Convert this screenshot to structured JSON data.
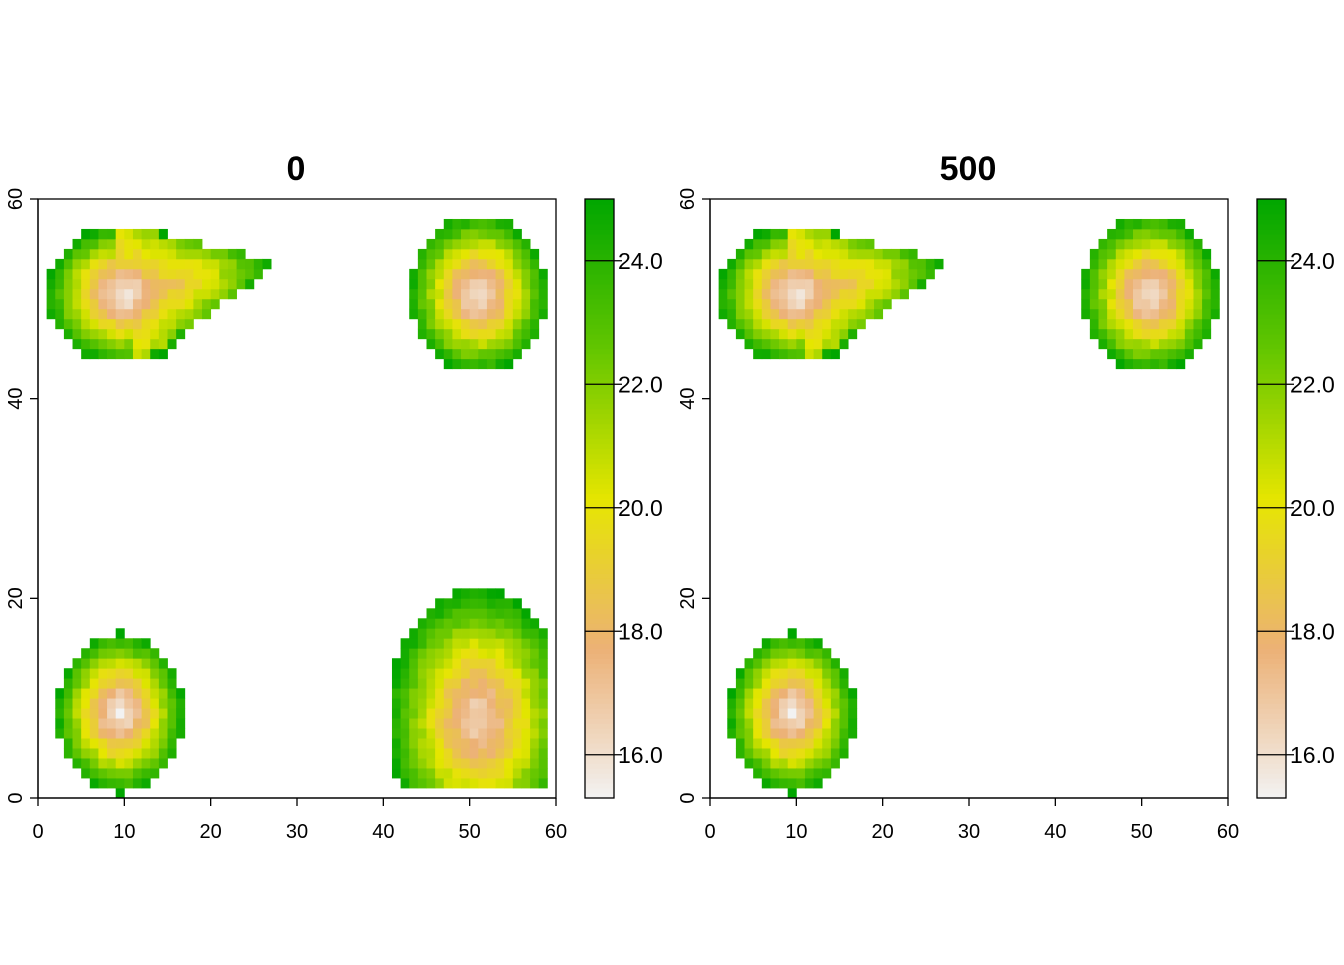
{
  "chart_data": [
    {
      "type": "heatmap",
      "title": "0",
      "xlabel": "",
      "ylabel": "",
      "xlim": [
        0,
        60
      ],
      "ylim": [
        0,
        60
      ],
      "x_ticks": [
        "0",
        "10",
        "20",
        "30",
        "40",
        "50",
        "60"
      ],
      "y_ticks": [
        "0",
        "20",
        "40",
        "60"
      ],
      "value_range": [
        15.3,
        25.0
      ],
      "colorbar": {
        "ticks": [
          "16.0",
          "18.0",
          "20.0",
          "22.0",
          "24.0"
        ],
        "colors": [
          "#f2f2f2",
          "#ecb176",
          "#e6e600",
          "#63c600",
          "#00a600"
        ]
      },
      "blobs": [
        {
          "cx": 10,
          "cy": 50.5,
          "core": 15.5,
          "edge": 25.0,
          "rx": 9,
          "ry": 7,
          "tail": {
            "x": 27,
            "y": 53.5
          }
        },
        {
          "cx": 51,
          "cy": 50.5,
          "core": 15.8,
          "edge": 25.0,
          "rx": 8,
          "ry": 8
        },
        {
          "cx": 9.5,
          "cy": 8.5,
          "core": 15.6,
          "edge": 25.0,
          "rx": 7.5,
          "ry": 8
        },
        {
          "cx": 51,
          "cy": 8,
          "core": 16.3,
          "edge": 25.0,
          "rx": 10.5,
          "ry": 13,
          "clip_x": [
            41,
            59
          ],
          "clip_y": [
            1,
            21
          ]
        }
      ]
    },
    {
      "type": "heatmap",
      "title": "500",
      "xlabel": "",
      "ylabel": "",
      "xlim": [
        0,
        60
      ],
      "ylim": [
        0,
        60
      ],
      "x_ticks": [
        "0",
        "10",
        "20",
        "30",
        "40",
        "50",
        "60"
      ],
      "y_ticks": [
        "0",
        "20",
        "40",
        "60"
      ],
      "value_range": [
        15.3,
        25.0
      ],
      "colorbar": {
        "ticks": [
          "16.0",
          "18.0",
          "20.0",
          "22.0",
          "24.0"
        ],
        "colors": [
          "#f2f2f2",
          "#ecb176",
          "#e6e600",
          "#63c600",
          "#00a600"
        ]
      },
      "blobs": [
        {
          "cx": 10,
          "cy": 50.5,
          "core": 15.5,
          "edge": 25.0,
          "rx": 9,
          "ry": 7,
          "tail": {
            "x": 27,
            "y": 53.5
          }
        },
        {
          "cx": 51,
          "cy": 50.5,
          "core": 15.8,
          "edge": 25.0,
          "rx": 8,
          "ry": 8
        },
        {
          "cx": 9.5,
          "cy": 8.5,
          "core": 15.6,
          "edge": 25.0,
          "rx": 7.5,
          "ry": 8
        }
      ]
    }
  ]
}
